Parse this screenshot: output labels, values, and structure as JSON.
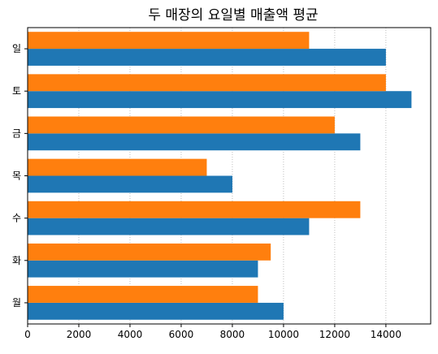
{
  "chart_data": {
    "type": "bar",
    "orientation": "horizontal",
    "title": "두 매장의 요일별 매출액 평균",
    "xlabel": "",
    "ylabel": "",
    "categories": [
      "월",
      "화",
      "수",
      "목",
      "금",
      "토",
      "일"
    ],
    "series": [
      {
        "values": [
          10000,
          9000,
          11000,
          8000,
          13000,
          15000,
          14000
        ],
        "color": "#1f77b4"
      },
      {
        "values": [
          9000,
          9500,
          13000,
          7000,
          12000,
          14000,
          11000
        ],
        "color": "#ff7f0e"
      }
    ],
    "xlim": [
      0,
      15750
    ],
    "xticks": [
      0,
      2000,
      4000,
      6000,
      8000,
      10000,
      12000,
      14000
    ],
    "grid": {
      "x": true,
      "style": "dotted"
    },
    "legend": "none"
  }
}
